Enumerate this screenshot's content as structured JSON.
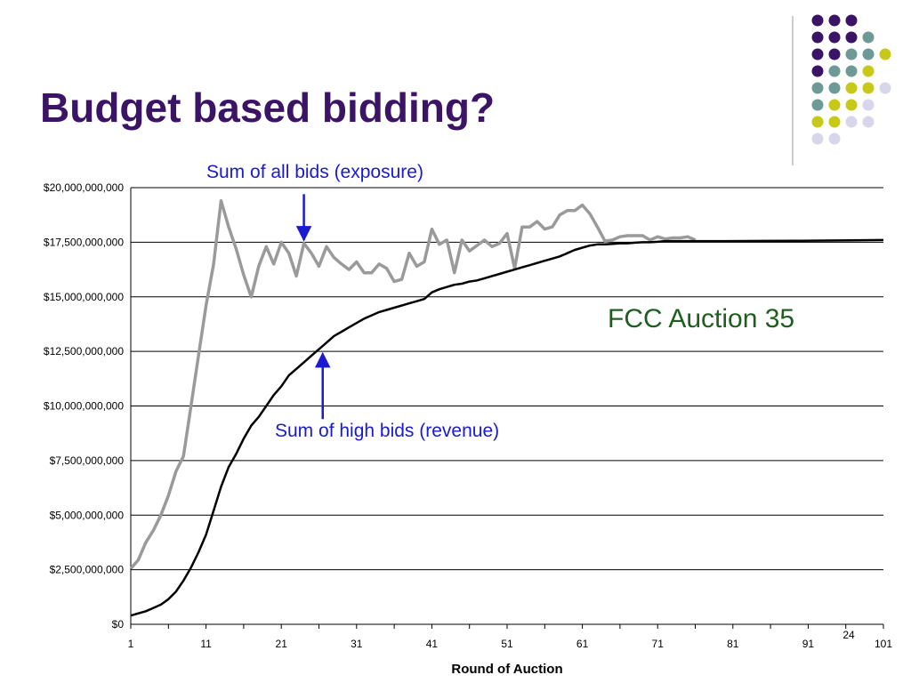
{
  "slide": {
    "title": "Budget based bidding?",
    "page_number": "24",
    "decoration": {
      "colors": [
        "#3b1466",
        "#6e9a96",
        "#c8c818",
        "#d8d6ea"
      ],
      "rows": [
        [
          0,
          0,
          0
        ],
        [
          0,
          0,
          0,
          1
        ],
        [
          0,
          0,
          1,
          1,
          2
        ],
        [
          0,
          1,
          1,
          2
        ],
        [
          1,
          1,
          2,
          2,
          3
        ],
        [
          1,
          2,
          2,
          3
        ],
        [
          2,
          2,
          3,
          3
        ],
        [
          3,
          3
        ]
      ]
    }
  },
  "chart_data": {
    "type": "line",
    "title": "",
    "xlabel": "Round of Auction",
    "ylabel": "",
    "xlim": [
      1,
      101
    ],
    "ylim": [
      0,
      20000000000
    ],
    "x_ticks": [
      1,
      11,
      21,
      31,
      41,
      51,
      61,
      71,
      81,
      91,
      101
    ],
    "y_ticks": [
      {
        "value": 0,
        "label": "$0"
      },
      {
        "value": 2500000000,
        "label": "$2,500,000,000"
      },
      {
        "value": 5000000000,
        "label": "$5,000,000,000"
      },
      {
        "value": 7500000000,
        "label": "$7,500,000,000"
      },
      {
        "value": 10000000000,
        "label": "$10,000,000,000"
      },
      {
        "value": 12500000000,
        "label": "$12,500,000,000"
      },
      {
        "value": 15000000000,
        "label": "$15,000,000,000"
      },
      {
        "value": 17500000000,
        "label": "$17,500,000,000"
      },
      {
        "value": 20000000000,
        "label": "$20,000,000,000"
      }
    ],
    "grid": "horizontal",
    "series": [
      {
        "color": "#9a9a9a",
        "points": [
          [
            1,
            2550000000.0
          ],
          [
            2,
            2950000000.0
          ],
          [
            3,
            3750000000.0
          ],
          [
            4,
            4300000000.0
          ],
          [
            5,
            5000000000.0
          ],
          [
            6,
            5900000000.0
          ],
          [
            7,
            7000000000.0
          ],
          [
            8,
            7700000000.0
          ],
          [
            9,
            10000000000.0
          ],
          [
            10,
            12300000000.0
          ],
          [
            11,
            14600000000.0
          ],
          [
            12,
            16500000000.0
          ],
          [
            13,
            19400000000.0
          ],
          [
            14,
            18200000000.0
          ],
          [
            15,
            17200000000.0
          ],
          [
            16,
            16000000000.0
          ],
          [
            17,
            15000000000.0
          ],
          [
            18,
            16400000000.0
          ],
          [
            19,
            17300000000.0
          ],
          [
            20,
            16500000000.0
          ],
          [
            21,
            17500000000.0
          ],
          [
            22,
            17000000000.0
          ],
          [
            23,
            15950000000.0
          ],
          [
            24,
            17450000000.0
          ],
          [
            25,
            17000000000.0
          ],
          [
            26,
            16400000000.0
          ],
          [
            27,
            17300000000.0
          ],
          [
            28,
            16800000000.0
          ],
          [
            29,
            16500000000.0
          ],
          [
            30,
            16250000000.0
          ],
          [
            31,
            16600000000.0
          ],
          [
            32,
            16100000000.0
          ],
          [
            33,
            16100000000.0
          ],
          [
            34,
            16500000000.0
          ],
          [
            35,
            16300000000.0
          ],
          [
            36,
            15700000000.0
          ],
          [
            37,
            15800000000.0
          ],
          [
            38,
            17000000000.0
          ],
          [
            39,
            16400000000.0
          ],
          [
            40,
            16600000000.0
          ],
          [
            41,
            18100000000.0
          ],
          [
            42,
            17400000000.0
          ],
          [
            43,
            17600000000.0
          ],
          [
            44,
            16100000000.0
          ],
          [
            45,
            17600000000.0
          ],
          [
            46,
            17100000000.0
          ],
          [
            47,
            17350000000.0
          ],
          [
            48,
            17600000000.0
          ],
          [
            49,
            17300000000.0
          ],
          [
            50,
            17450000000.0
          ],
          [
            51,
            17900000000.0
          ],
          [
            52,
            16300000000.0
          ],
          [
            53,
            18200000000.0
          ],
          [
            54,
            18200000000.0
          ],
          [
            55,
            18450000000.0
          ],
          [
            56,
            18100000000.0
          ],
          [
            57,
            18200000000.0
          ],
          [
            58,
            18750000000.0
          ],
          [
            59,
            18950000000.0
          ],
          [
            60,
            18950000000.0
          ],
          [
            61,
            19200000000.0
          ],
          [
            62,
            18800000000.0
          ],
          [
            63,
            18200000000.0
          ],
          [
            64,
            17550000000.0
          ],
          [
            65,
            17600000000.0
          ],
          [
            66,
            17750000000.0
          ],
          [
            67,
            17800000000.0
          ],
          [
            68,
            17800000000.0
          ],
          [
            69,
            17800000000.0
          ],
          [
            70,
            17600000000.0
          ],
          [
            71,
            17750000000.0
          ],
          [
            72,
            17650000000.0
          ],
          [
            73,
            17700000000.0
          ],
          [
            74,
            17700000000.0
          ],
          [
            75,
            17750000000.0
          ],
          [
            76,
            17600000000.0
          ]
        ]
      },
      {
        "color": "#000000",
        "points": [
          [
            1,
            400000000.0
          ],
          [
            2,
            500000000.0
          ],
          [
            3,
            600000000.0
          ],
          [
            4,
            750000000.0
          ],
          [
            5,
            900000000.0
          ],
          [
            6,
            1150000000.0
          ],
          [
            7,
            1500000000.0
          ],
          [
            8,
            2000000000.0
          ],
          [
            9,
            2600000000.0
          ],
          [
            10,
            3300000000.0
          ],
          [
            11,
            4100000000.0
          ],
          [
            12,
            5200000000.0
          ],
          [
            13,
            6300000000.0
          ],
          [
            14,
            7200000000.0
          ],
          [
            15,
            7800000000.0
          ],
          [
            16,
            8500000000.0
          ],
          [
            17,
            9100000000.0
          ],
          [
            18,
            9500000000.0
          ],
          [
            19,
            10000000000.0
          ],
          [
            20,
            10500000000.0
          ],
          [
            21,
            10900000000.0
          ],
          [
            22,
            11400000000.0
          ],
          [
            23,
            11700000000.0
          ],
          [
            24,
            12000000000.0
          ],
          [
            25,
            12300000000.0
          ],
          [
            26,
            12600000000.0
          ],
          [
            27,
            12900000000.0
          ],
          [
            28,
            13200000000.0
          ],
          [
            29,
            13400000000.0
          ],
          [
            30,
            13600000000.0
          ],
          [
            31,
            13800000000.0
          ],
          [
            32,
            14000000000.0
          ],
          [
            33,
            14150000000.0
          ],
          [
            34,
            14300000000.0
          ],
          [
            35,
            14400000000.0
          ],
          [
            36,
            14500000000.0
          ],
          [
            37,
            14600000000.0
          ],
          [
            38,
            14700000000.0
          ],
          [
            39,
            14800000000.0
          ],
          [
            40,
            14900000000.0
          ],
          [
            41,
            15200000000.0
          ],
          [
            42,
            15350000000.0
          ],
          [
            43,
            15450000000.0
          ],
          [
            44,
            15550000000.0
          ],
          [
            45,
            15600000000.0
          ],
          [
            46,
            15700000000.0
          ],
          [
            47,
            15750000000.0
          ],
          [
            48,
            15850000000.0
          ],
          [
            49,
            15950000000.0
          ],
          [
            50,
            16050000000.0
          ],
          [
            51,
            16150000000.0
          ],
          [
            52,
            16250000000.0
          ],
          [
            53,
            16350000000.0
          ],
          [
            54,
            16450000000.0
          ],
          [
            55,
            16550000000.0
          ],
          [
            56,
            16650000000.0
          ],
          [
            57,
            16750000000.0
          ],
          [
            58,
            16850000000.0
          ],
          [
            59,
            17000000000.0
          ],
          [
            60,
            17150000000.0
          ],
          [
            61,
            17250000000.0
          ],
          [
            62,
            17350000000.0
          ],
          [
            63,
            17400000000.0
          ],
          [
            64,
            17400000000.0
          ],
          [
            65,
            17420000000.0
          ],
          [
            66,
            17450000000.0
          ],
          [
            67,
            17450000000.0
          ],
          [
            68,
            17480000000.0
          ],
          [
            69,
            17500000000.0
          ],
          [
            70,
            17500000000.0
          ],
          [
            71,
            17520000000.0
          ],
          [
            72,
            17550000000.0
          ],
          [
            75,
            17550000000.0
          ],
          [
            80,
            17550000000.0
          ],
          [
            85,
            17560000000.0
          ],
          [
            90,
            17570000000.0
          ],
          [
            95,
            17580000000.0
          ],
          [
            101,
            17600000000.0
          ]
        ]
      }
    ],
    "annotations": [
      {
        "text": "Sum of all bids (exposure)",
        "arrow_from": [
          24,
          19700000000.0
        ],
        "arrow_to": [
          24,
          17600000000.0
        ],
        "color": "#1a1ad0"
      },
      {
        "text": "Sum of high bids (revenue)",
        "arrow_from": [
          26.5,
          9400000000.0
        ],
        "arrow_to": [
          26.5,
          12400000000.0
        ],
        "color": "#1a1ad0"
      },
      {
        "text": "FCC Auction 35",
        "color": "#1e5e1e"
      }
    ]
  }
}
